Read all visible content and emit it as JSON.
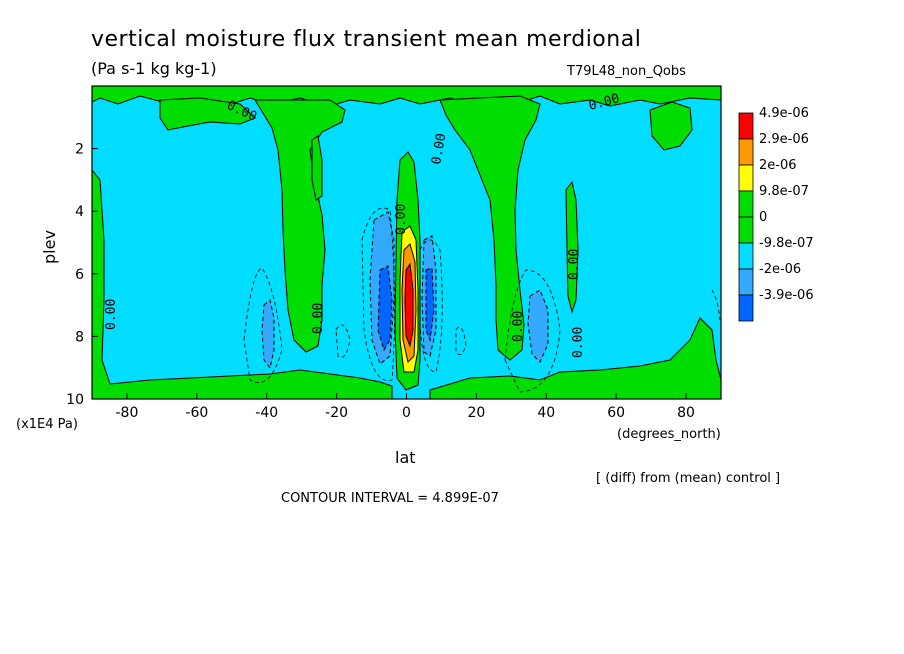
{
  "title": "vertical moisture flux transient mean merdional",
  "units": "(Pa s-1 kg kg-1)",
  "experiment": "T79L48_non_Qobs",
  "diff_note": "[ (diff) from (mean) control ]",
  "contour_interval": "CONTOUR INTERVAL = 4.899E-07",
  "chart_data": {
    "type": "heatmap",
    "title": "vertical moisture flux transient mean merdional",
    "xlabel": "lat",
    "x_units": "(degrees_north)",
    "ylabel": "plev",
    "y_units": "(x1E4 Pa)",
    "xlim": [
      -90,
      90
    ],
    "ylim": [
      10,
      0
    ],
    "x_ticks": [
      "-80",
      "-60",
      "-40",
      "-20",
      "0",
      "20",
      "40",
      "60",
      "80"
    ],
    "y_ticks": [
      "2",
      "4",
      "6",
      "8",
      "10"
    ],
    "x_tick_values": [
      -80,
      -60,
      -40,
      -20,
      0,
      20,
      40,
      60,
      80
    ],
    "y_tick_values": [
      2,
      4,
      6,
      8,
      10
    ],
    "contour_labels": [
      "0.00",
      "0.00",
      "0.00",
      "0.00",
      "0.00",
      "0.00",
      "0.00",
      "0.00",
      "0.00"
    ],
    "colorbar": {
      "labels": [
        "4.9e-06",
        "2.9e-06",
        "2e-06",
        "9.8e-07",
        "0",
        "-9.8e-07",
        "-2e-06",
        "-3.9e-06"
      ],
      "colors": [
        "#ff0000",
        "#ff9900",
        "#ffff00",
        "#00dd00",
        "#00dd00",
        "#00ddff",
        "#33aaff",
        "#0066ff"
      ]
    },
    "colors": {
      "positive_low": "#00dd00",
      "negative_low": "#00ddff",
      "negative_mid": "#33aaff",
      "negative_high": "#0066ff",
      "positive_mid": "#ffff00",
      "positive_high": "#ff9900",
      "positive_max": "#ff0000"
    }
  }
}
